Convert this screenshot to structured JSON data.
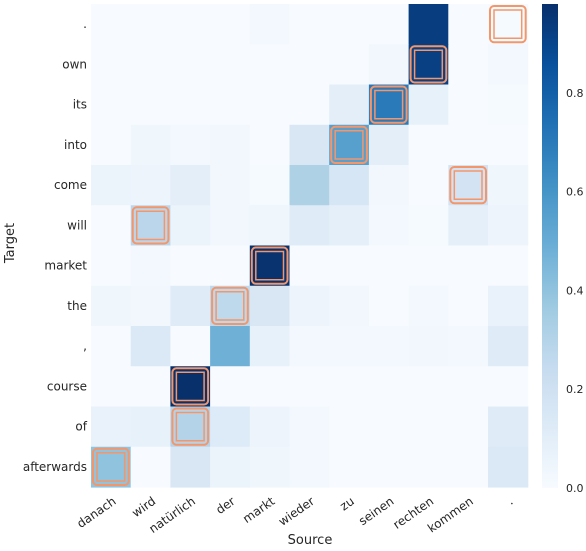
{
  "chart_data": {
    "type": "heatmap",
    "title": "",
    "xlabel": "Source",
    "ylabel": "Target",
    "x_categories": [
      "danach",
      "wird",
      "natürlich",
      "der",
      "markt",
      "wieder",
      "zu",
      "seinen",
      "rechten",
      "kommen",
      "."
    ],
    "y_categories": [
      ".",
      "own",
      "its",
      "into",
      "come",
      "will",
      "market",
      "the",
      ",",
      "course",
      "of",
      "afterwards"
    ],
    "values": [
      [
        0.0,
        0.0,
        0.0,
        0.0,
        0.02,
        0.0,
        0.0,
        0.0,
        0.93,
        0.0,
        0.01
      ],
      [
        0.0,
        0.0,
        0.0,
        0.0,
        0.0,
        0.0,
        0.0,
        0.03,
        0.92,
        0.0,
        0.02
      ],
      [
        0.0,
        0.0,
        0.0,
        0.0,
        0.0,
        0.0,
        0.1,
        0.7,
        0.08,
        0.0,
        0.01
      ],
      [
        0.0,
        0.04,
        0.02,
        0.03,
        0.0,
        0.15,
        0.55,
        0.1,
        0.0,
        0.0,
        0.0
      ],
      [
        0.06,
        0.05,
        0.1,
        0.03,
        0.01,
        0.32,
        0.16,
        0.03,
        0.0,
        0.18,
        0.04
      ],
      [
        0.0,
        0.28,
        0.06,
        0.03,
        0.04,
        0.12,
        0.09,
        0.02,
        0.01,
        0.09,
        0.05
      ],
      [
        0.0,
        0.02,
        0.0,
        0.0,
        0.97,
        0.0,
        0.0,
        0.0,
        0.0,
        0.0,
        0.0
      ],
      [
        0.04,
        0.03,
        0.12,
        0.27,
        0.15,
        0.05,
        0.03,
        0.0,
        0.02,
        0.0,
        0.07
      ],
      [
        0.0,
        0.14,
        0.0,
        0.48,
        0.08,
        0.02,
        0.02,
        0.02,
        0.03,
        0.02,
        0.12
      ],
      [
        0.0,
        0.0,
        0.98,
        0.0,
        0.0,
        0.0,
        0.0,
        0.0,
        0.0,
        0.0,
        0.0
      ],
      [
        0.07,
        0.08,
        0.3,
        0.13,
        0.05,
        0.02,
        0.0,
        0.0,
        0.0,
        0.0,
        0.12
      ],
      [
        0.4,
        0.0,
        0.15,
        0.06,
        0.04,
        0.02,
        0.0,
        0.0,
        0.0,
        0.0,
        0.14
      ]
    ],
    "highlighted_cells": [
      {
        "x": ".",
        "y": "."
      },
      {
        "x": "rechten",
        "y": "own"
      },
      {
        "x": "seinen",
        "y": "its"
      },
      {
        "x": "zu",
        "y": "into"
      },
      {
        "x": "kommen",
        "y": "come"
      },
      {
        "x": "wird",
        "y": "will"
      },
      {
        "x": "markt",
        "y": "market"
      },
      {
        "x": "der",
        "y": "the"
      },
      {
        "x": "natürlich",
        "y": "course"
      },
      {
        "x": "natürlich",
        "y": "of"
      },
      {
        "x": "danach",
        "y": "afterwards"
      }
    ],
    "colormap": "Blues",
    "highlight_color": "#f4966a",
    "vmin": 0.0,
    "vmax": 0.98,
    "colorbar_ticks": [
      "0.0",
      "0.2",
      "0.4",
      "0.6",
      "0.8"
    ],
    "colorbar_tick_values": [
      0.0,
      0.2,
      0.4,
      0.6,
      0.8
    ],
    "grid": false
  }
}
